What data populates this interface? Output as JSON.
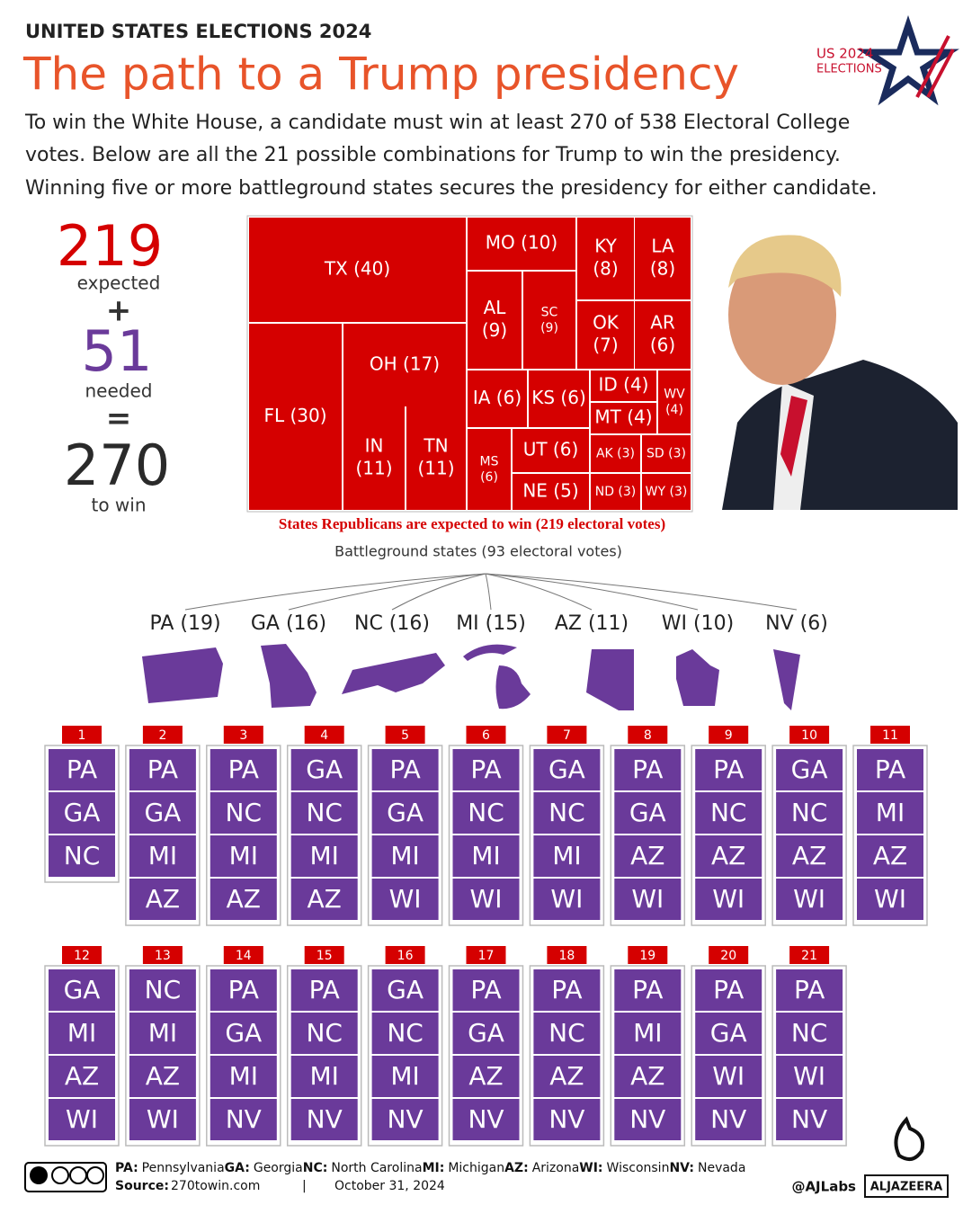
{
  "header": {
    "kicker": "UNITED STATES ELECTIONS 2024",
    "title": "The path to a Trump presidency",
    "intro": [
      "To win the White House, a candidate must win at least 270 of 538 Electoral College",
      "votes. Below are all the 21 possible combinations for Trump to win the presidency.",
      "Winning five or more battleground states secures the presidency for either candidate."
    ],
    "logo": [
      "US 2024",
      "ELECTIONS"
    ]
  },
  "equation": {
    "expected": "219",
    "expected_label": "expected",
    "plus": "+",
    "needed": "51",
    "needed_label": "needed",
    "equals": "=",
    "total": "270",
    "total_label": "to win"
  },
  "treemap": {
    "cells": [
      [
        "TX (40)"
      ],
      [
        "FL (30)"
      ],
      [
        "OH (17)"
      ],
      [
        "IN",
        "(11)"
      ],
      [
        "TN",
        "(11)"
      ],
      [
        "MO (10)"
      ],
      [
        "KY",
        "(8)"
      ],
      [
        "LA",
        "(8)"
      ],
      [
        "AL",
        "(9)"
      ],
      [
        "SC",
        "(9)"
      ],
      [
        "OK",
        "(7)"
      ],
      [
        "AR",
        "(6)"
      ],
      [
        "IA (6)"
      ],
      [
        "KS (6)"
      ],
      [
        "ID (4)"
      ],
      [
        "MT (4)"
      ],
      [
        "WV",
        "(4)"
      ],
      [
        "MS",
        "(6)"
      ],
      [
        "UT (6)"
      ],
      [
        "NE (5)"
      ],
      [
        "AK (3)"
      ],
      [
        "SD (3)"
      ],
      [
        "ND (3)"
      ],
      [
        "WY (3)"
      ]
    ],
    "caption": "States Republicans are expected to win (219 electoral votes)"
  },
  "battleground": {
    "title": "Battleground states (93 electoral votes)",
    "states": [
      "PA (19)",
      "GA (16)",
      "NC (16)",
      "MI (15)",
      "AZ (11)",
      "WI (10)",
      "NV (6)"
    ]
  },
  "combinations": [
    {
      "number": 1,
      "states": [
        "PA",
        "GA",
        "NC"
      ]
    },
    {
      "number": 2,
      "states": [
        "PA",
        "GA",
        "MI",
        "AZ"
      ]
    },
    {
      "number": 3,
      "states": [
        "PA",
        "NC",
        "MI",
        "AZ"
      ]
    },
    {
      "number": 4,
      "states": [
        "GA",
        "NC",
        "MI",
        "AZ"
      ]
    },
    {
      "number": 5,
      "states": [
        "PA",
        "GA",
        "MI",
        "WI"
      ]
    },
    {
      "number": 6,
      "states": [
        "PA",
        "NC",
        "MI",
        "WI"
      ]
    },
    {
      "number": 7,
      "states": [
        "GA",
        "NC",
        "MI",
        "WI"
      ]
    },
    {
      "number": 8,
      "states": [
        "PA",
        "GA",
        "AZ",
        "WI"
      ]
    },
    {
      "number": 9,
      "states": [
        "PA",
        "NC",
        "AZ",
        "WI"
      ]
    },
    {
      "number": 10,
      "states": [
        "GA",
        "NC",
        "AZ",
        "WI"
      ]
    },
    {
      "number": 11,
      "states": [
        "PA",
        "MI",
        "AZ",
        "WI"
      ]
    },
    {
      "number": 12,
      "states": [
        "GA",
        "MI",
        "AZ",
        "WI"
      ]
    },
    {
      "number": 13,
      "states": [
        "NC",
        "MI",
        "AZ",
        "WI"
      ]
    },
    {
      "number": 14,
      "states": [
        "PA",
        "GA",
        "MI",
        "NV"
      ]
    },
    {
      "number": 15,
      "states": [
        "PA",
        "NC",
        "MI",
        "NV"
      ]
    },
    {
      "number": 16,
      "states": [
        "GA",
        "NC",
        "MI",
        "NV"
      ]
    },
    {
      "number": 17,
      "states": [
        "PA",
        "GA",
        "AZ",
        "NV"
      ]
    },
    {
      "number": 18,
      "states": [
        "PA",
        "NC",
        "AZ",
        "NV"
      ]
    },
    {
      "number": 19,
      "states": [
        "PA",
        "MI",
        "AZ",
        "NV"
      ]
    },
    {
      "number": 20,
      "states": [
        "PA",
        "GA",
        "WI",
        "NV"
      ]
    },
    {
      "number": 21,
      "states": [
        "PA",
        "NC",
        "WI",
        "NV"
      ]
    }
  ],
  "footer": {
    "legend": [
      {
        "abbr": "PA:",
        "name": "Pennsylvania"
      },
      {
        "abbr": "GA:",
        "name": "Georgia"
      },
      {
        "abbr": "NC:",
        "name": "North Carolina"
      },
      {
        "abbr": "MI:",
        "name": "Michigan"
      },
      {
        "abbr": "AZ:",
        "name": "Arizona"
      },
      {
        "abbr": "WI:",
        "name": "Wisconsin"
      },
      {
        "abbr": "NV:",
        "name": "Nevada"
      }
    ],
    "source_label": "Source:",
    "source": "270towin.com",
    "separator": "|",
    "date": "October 31, 2024",
    "handle": "@AJLabs",
    "brand": "ALJAZEERA"
  }
}
